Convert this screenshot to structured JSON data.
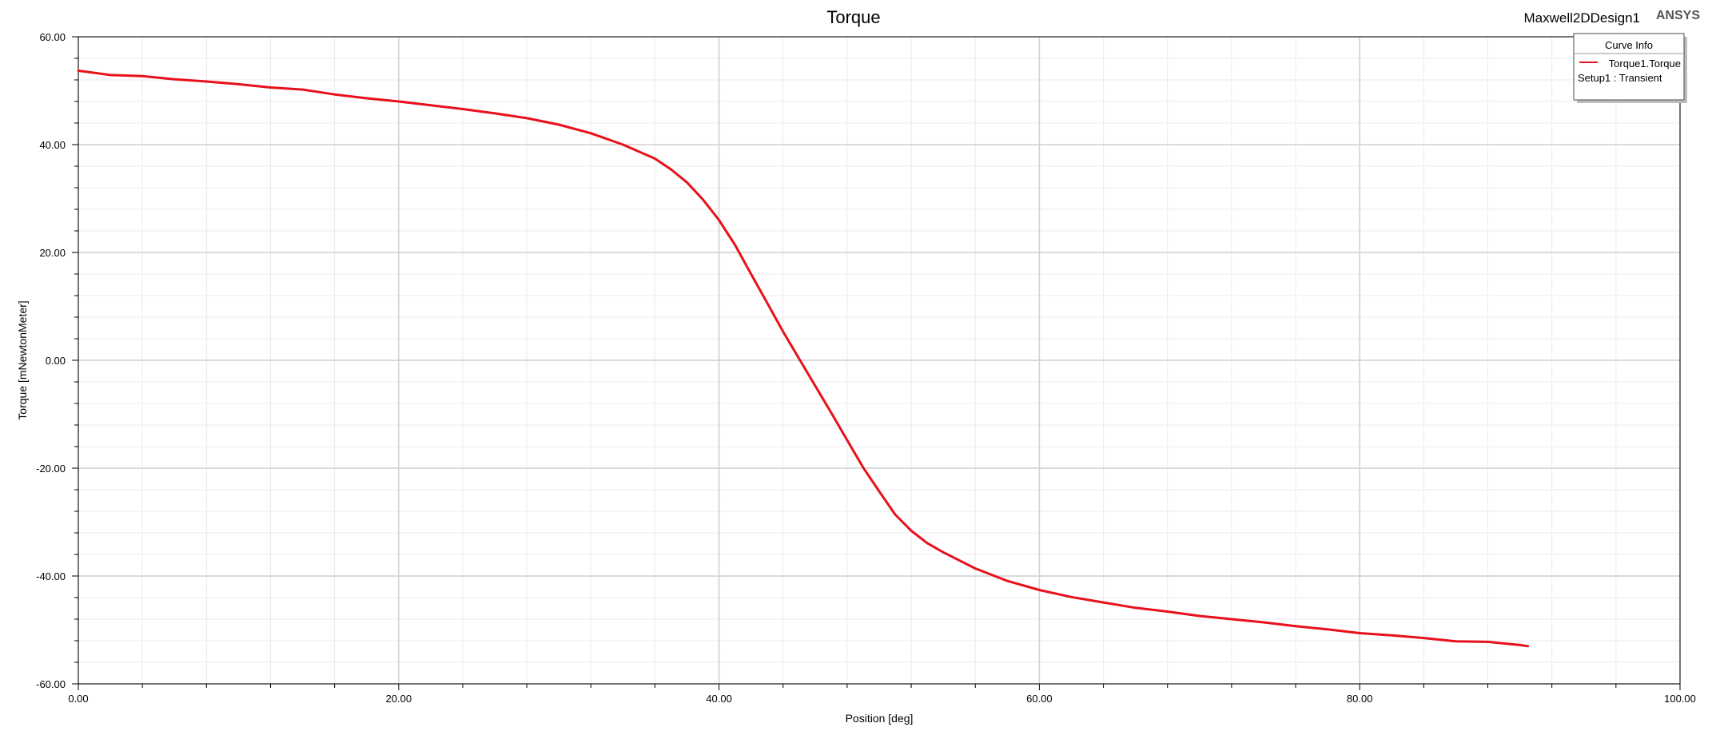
{
  "header": {
    "design_name": "Maxwell2DDesign1",
    "brand": "ANSYS"
  },
  "legend": {
    "title": "Curve Info",
    "entries": [
      {
        "name": "Torque1.Torque",
        "detail": "Setup1 : Transient",
        "color": "#e8111b"
      }
    ]
  },
  "colors": {
    "curve": "#e8111b",
    "major_grid": "#cfcfcf",
    "minor_grid": "#ebebeb",
    "axis": "#000000"
  },
  "chart_data": {
    "type": "line",
    "title": "Torque",
    "xlabel": "Position [deg]",
    "ylabel": "Torque [mNewtonMeter]",
    "xlim": [
      0,
      100
    ],
    "ylim": [
      -60,
      60
    ],
    "x_ticks": [
      "0.00",
      "20.00",
      "40.00",
      "60.00",
      "80.00",
      "100.00"
    ],
    "y_ticks": [
      "60.00",
      "40.00",
      "20.00",
      "0.00",
      "-20.00",
      "-40.00",
      "-60.00"
    ],
    "grid": true,
    "legend_position": "top-right",
    "series": [
      {
        "name": "Torque1.Torque",
        "x": [
          0,
          2,
          4,
          6,
          8,
          10,
          12,
          14,
          16,
          18,
          20,
          22,
          24,
          26,
          28,
          30,
          32,
          34,
          36,
          37,
          38,
          39,
          40,
          41,
          42,
          43,
          44,
          45,
          46,
          47,
          48,
          49,
          50,
          51,
          52,
          53,
          54,
          56,
          58,
          60,
          62,
          64,
          66,
          68,
          70,
          72,
          74,
          76,
          78,
          80,
          82,
          84,
          86,
          88,
          90,
          90.5
        ],
        "y": [
          53.7,
          52.9,
          52.7,
          52.1,
          51.7,
          51.2,
          50.6,
          50.2,
          49.3,
          48.6,
          48.0,
          47.3,
          46.6,
          45.8,
          44.9,
          43.7,
          42.1,
          40.0,
          37.4,
          35.4,
          33.0,
          29.8,
          26.0,
          21.4,
          16.0,
          10.7,
          5.3,
          0.3,
          -4.7,
          -9.7,
          -14.8,
          -19.9,
          -24.3,
          -28.6,
          -31.6,
          -33.9,
          -35.6,
          -38.6,
          -40.9,
          -42.6,
          -43.9,
          -44.9,
          -45.9,
          -46.6,
          -47.4,
          -48.0,
          -48.6,
          -49.3,
          -49.9,
          -50.6,
          -51.0,
          -51.5,
          -52.1,
          -52.2,
          -52.8,
          -53.0
        ]
      }
    ]
  }
}
